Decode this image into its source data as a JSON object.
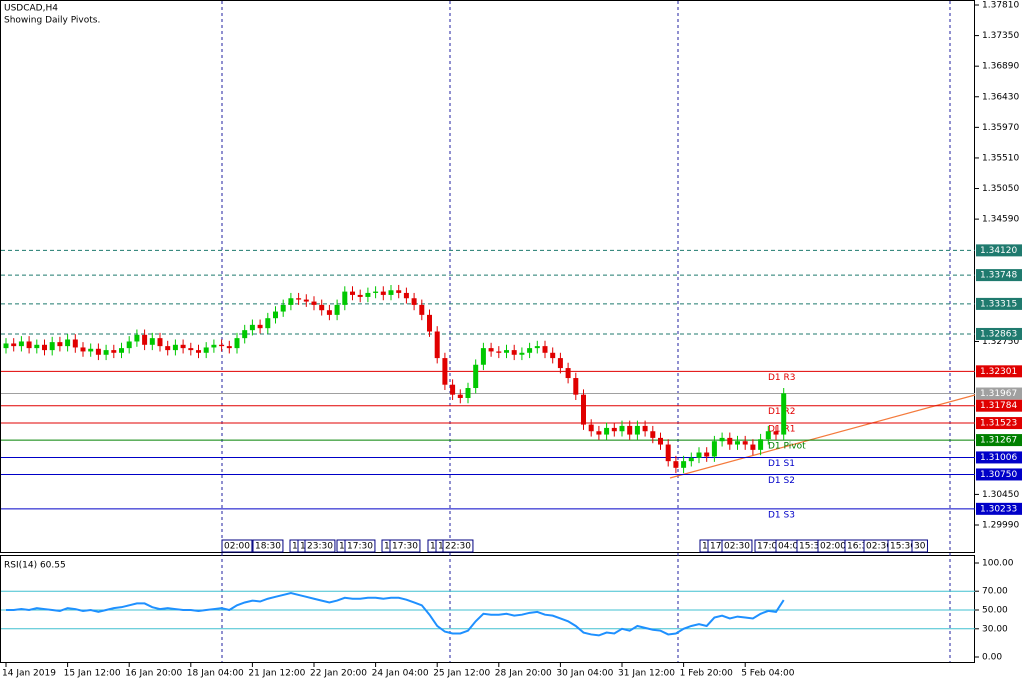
{
  "chart_data": [
    {
      "type": "candlestick",
      "title": "USDCAD,H4",
      "subtitle": "Showing Daily Pivots.",
      "categories": [
        "14 Jan 2019",
        null,
        null,
        null,
        null,
        null,
        null,
        null,
        "15 Jan 12:00",
        null,
        null,
        null,
        null,
        null,
        null,
        null,
        "16 Jan 20:00",
        null,
        null,
        null,
        null,
        null,
        null,
        null,
        "18 Jan 04:00",
        null,
        null,
        null,
        null,
        null,
        null,
        null,
        "21 Jan 12:00",
        null,
        null,
        null,
        null,
        null,
        null,
        null,
        "22 Jan 20:00",
        null,
        null,
        null,
        null,
        null,
        null,
        null,
        "24 Jan 04:00",
        null,
        null,
        null,
        null,
        null,
        null,
        null,
        "25 Jan 12:00",
        null,
        null,
        null,
        null,
        null,
        null,
        null,
        "28 Jan 20:00",
        null,
        null,
        null,
        null,
        null,
        null,
        null,
        "30 Jan 04:00",
        null,
        null,
        null,
        null,
        null,
        null,
        null,
        "31 Jan 12:00",
        null,
        null,
        null,
        null,
        null,
        null,
        null,
        "1 Feb 20:00",
        null,
        null,
        null,
        null,
        null,
        null,
        null,
        "5 Feb 04:00",
        null,
        null,
        null,
        null,
        null
      ],
      "open": [
        1.3265,
        1.3272,
        1.3268,
        1.3275,
        1.3265,
        1.327,
        1.3262,
        1.3274,
        1.3268,
        1.3278,
        1.3266,
        1.326,
        1.3264,
        1.3255,
        1.3262,
        1.3258,
        1.3265,
        1.3275,
        1.3285,
        1.327,
        1.328,
        1.3268,
        1.3262,
        1.327,
        1.3265,
        1.3262,
        1.3258,
        1.3266,
        1.327,
        1.3268,
        1.3265,
        1.328,
        1.3292,
        1.33,
        1.3295,
        1.331,
        1.332,
        1.333,
        1.334,
        1.3338,
        1.3335,
        1.333,
        1.3322,
        1.3315,
        1.333,
        1.335,
        1.3345,
        1.3342,
        1.3348,
        1.335,
        1.3345,
        1.3352,
        1.3348,
        1.334,
        1.333,
        1.3315,
        1.329,
        1.325,
        1.321,
        1.3195,
        1.319,
        1.3205,
        1.324,
        1.3265,
        1.326,
        1.3258,
        1.3262,
        1.3255,
        1.3258,
        1.3265,
        1.3268,
        1.3258,
        1.325,
        1.3235,
        1.322,
        1.3195,
        1.315,
        1.314,
        1.3135,
        1.3145,
        1.314,
        1.3148,
        1.3135,
        1.3148,
        1.314,
        1.313,
        1.312,
        1.3095,
        1.3085,
        1.3095,
        1.31,
        1.3108,
        1.3102,
        1.3125,
        1.313,
        1.312,
        1.3125,
        1.312,
        1.3112,
        1.3128,
        1.314,
        1.3135
      ],
      "high": [
        1.328,
        1.328,
        1.3283,
        1.3283,
        1.3278,
        1.3278,
        1.3282,
        1.3282,
        1.3286,
        1.3286,
        1.3274,
        1.3272,
        1.3272,
        1.327,
        1.327,
        1.3273,
        1.3283,
        1.3293,
        1.3293,
        1.3288,
        1.3288,
        1.3276,
        1.3278,
        1.3278,
        1.3273,
        1.327,
        1.3274,
        1.3278,
        1.3278,
        1.3276,
        1.3288,
        1.33,
        1.3308,
        1.3308,
        1.3318,
        1.3328,
        1.3338,
        1.3348,
        1.3348,
        1.3346,
        1.3343,
        1.3338,
        1.333,
        1.3338,
        1.3358,
        1.3358,
        1.3353,
        1.3356,
        1.3358,
        1.3358,
        1.336,
        1.336,
        1.3356,
        1.3348,
        1.3338,
        1.3323,
        1.3298,
        1.3258,
        1.3218,
        1.3203,
        1.3213,
        1.3248,
        1.3273,
        1.3273,
        1.3268,
        1.327,
        1.327,
        1.3266,
        1.3273,
        1.3276,
        1.3276,
        1.3266,
        1.3258,
        1.3243,
        1.3228,
        1.3203,
        1.3158,
        1.3148,
        1.3153,
        1.3153,
        1.3156,
        1.3156,
        1.3156,
        1.3156,
        1.3148,
        1.3138,
        1.3128,
        1.3103,
        1.3103,
        1.3108,
        1.3116,
        1.3116,
        1.3133,
        1.3138,
        1.3138,
        1.3133,
        1.3133,
        1.3128,
        1.3136,
        1.3148,
        1.3148,
        1.3205
      ],
      "low": [
        1.3257,
        1.326,
        1.326,
        1.3257,
        1.3257,
        1.3254,
        1.3254,
        1.326,
        1.326,
        1.3258,
        1.3252,
        1.3252,
        1.3247,
        1.3247,
        1.325,
        1.325,
        1.3257,
        1.3267,
        1.3262,
        1.3262,
        1.326,
        1.3254,
        1.3254,
        1.3257,
        1.3254,
        1.325,
        1.325,
        1.3258,
        1.326,
        1.3257,
        1.3257,
        1.3272,
        1.3284,
        1.3287,
        1.3287,
        1.3302,
        1.3312,
        1.3322,
        1.333,
        1.3327,
        1.3322,
        1.3314,
        1.3307,
        1.3307,
        1.3322,
        1.3337,
        1.3334,
        1.3334,
        1.334,
        1.3337,
        1.3337,
        1.334,
        1.3332,
        1.3322,
        1.3307,
        1.3282,
        1.3242,
        1.3202,
        1.3187,
        1.3182,
        1.3182,
        1.3197,
        1.3232,
        1.3252,
        1.325,
        1.325,
        1.3247,
        1.3247,
        1.325,
        1.3257,
        1.325,
        1.3242,
        1.3227,
        1.3212,
        1.3187,
        1.3142,
        1.3132,
        1.3127,
        1.3127,
        1.3132,
        1.3132,
        1.3127,
        1.3127,
        1.3132,
        1.3122,
        1.3112,
        1.3087,
        1.3077,
        1.3077,
        1.3087,
        1.3092,
        1.3094,
        1.3094,
        1.3117,
        1.3112,
        1.3112,
        1.3112,
        1.3104,
        1.3104,
        1.312,
        1.3127,
        1.3127
      ],
      "close": [
        1.3272,
        1.3268,
        1.3275,
        1.3265,
        1.327,
        1.3262,
        1.3274,
        1.3268,
        1.3278,
        1.3266,
        1.326,
        1.3264,
        1.3255,
        1.3262,
        1.3258,
        1.3265,
        1.3275,
        1.3285,
        1.327,
        1.328,
        1.3268,
        1.3262,
        1.327,
        1.3265,
        1.3262,
        1.3258,
        1.3266,
        1.327,
        1.3268,
        1.3265,
        1.328,
        1.3292,
        1.33,
        1.3295,
        1.331,
        1.332,
        1.333,
        1.334,
        1.3338,
        1.3335,
        1.333,
        1.3322,
        1.3315,
        1.333,
        1.335,
        1.3345,
        1.3342,
        1.3348,
        1.335,
        1.3345,
        1.3352,
        1.3348,
        1.334,
        1.333,
        1.3315,
        1.329,
        1.325,
        1.321,
        1.3195,
        1.319,
        1.3205,
        1.324,
        1.3265,
        1.326,
        1.3258,
        1.3262,
        1.3255,
        1.3258,
        1.3265,
        1.3268,
        1.3258,
        1.325,
        1.3235,
        1.322,
        1.3195,
        1.315,
        1.314,
        1.3135,
        1.3145,
        1.314,
        1.3148,
        1.3135,
        1.3148,
        1.314,
        1.313,
        1.312,
        1.3095,
        1.3085,
        1.3095,
        1.31,
        1.3108,
        1.3102,
        1.3125,
        1.313,
        1.312,
        1.3125,
        1.312,
        1.3112,
        1.3128,
        1.314,
        1.3135,
        1.3197
      ],
      "up_color": "#00c800",
      "down_color": "#e00000",
      "ylim": [
        1.2999,
        1.3781
      ],
      "yticks": [
        {
          "value": 1.3781,
          "label": "1.37810"
        },
        {
          "value": 1.3735,
          "label": "1.37350"
        },
        {
          "value": 1.3689,
          "label": "1.36890"
        },
        {
          "value": 1.3643,
          "label": "1.36430"
        },
        {
          "value": 1.3597,
          "label": "1.35970"
        },
        {
          "value": 1.3551,
          "label": "1.35510"
        },
        {
          "value": 1.3505,
          "label": "1.35050"
        },
        {
          "value": 1.3459,
          "label": "1.34590"
        },
        {
          "value": 1.3275,
          "label": "1.32750"
        },
        {
          "value": 1.3045,
          "label": "1.30450"
        },
        {
          "value": 1.2999,
          "label": "1.29990"
        }
      ],
      "levels": [
        {
          "value": 1.3412,
          "label": "1.34120",
          "color": "#1f7a6e",
          "style": "dashed"
        },
        {
          "value": 1.33748,
          "label": "1.33748",
          "color": "#1f7a6e",
          "style": "dashed"
        },
        {
          "value": 1.33315,
          "label": "1.33315",
          "color": "#1f7a6e",
          "style": "dashed"
        },
        {
          "value": 1.32863,
          "label": "1.32863",
          "color": "#1f7a6e",
          "style": "dashed"
        },
        {
          "value": 1.32301,
          "label": "1.32301",
          "name": "D1 R3",
          "color": "#e00000",
          "style": "solid"
        },
        {
          "value": 1.31967,
          "label": "1.31967",
          "color": "#a0a0a0",
          "style": "solid"
        },
        {
          "value": 1.31784,
          "label": "1.31784",
          "name": "D1 R2",
          "color": "#e00000",
          "style": "solid"
        },
        {
          "value": 1.31523,
          "label": "1.31523",
          "name": "D1 R1",
          "color": "#e00000",
          "style": "solid"
        },
        {
          "value": 1.31267,
          "label": "1.31267",
          "name": "D1 Pivot",
          "color": "#008000",
          "style": "solid"
        },
        {
          "value": 1.31006,
          "label": "1.31006",
          "name": "D1 S1",
          "color": "#0000c8",
          "style": "solid"
        },
        {
          "value": 1.3075,
          "label": "1.30750",
          "name": "D1 S2",
          "color": "#0000c8",
          "style": "solid"
        },
        {
          "value": 1.30233,
          "label": "1.30233",
          "name": "D1 S3",
          "color": "#0000c8",
          "style": "solid"
        }
      ]
    },
    {
      "type": "line",
      "title": "RSI(14) 60.55",
      "color": "#1e90ff",
      "values": [
        50,
        50,
        51,
        50,
        52,
        51,
        50,
        49,
        52,
        51,
        49,
        50,
        48,
        50,
        52,
        53,
        55,
        57,
        57,
        53,
        51,
        52,
        51,
        50,
        50,
        49,
        50,
        51,
        52,
        50,
        55,
        58,
        60,
        59,
        62,
        64,
        66,
        68,
        66,
        64,
        62,
        60,
        58,
        60,
        63,
        62,
        62,
        63,
        63,
        62,
        63,
        63,
        61,
        58,
        55,
        45,
        33,
        27,
        25,
        25,
        28,
        38,
        46,
        45,
        45,
        46,
        44,
        45,
        47,
        48,
        45,
        44,
        41,
        38,
        33,
        26,
        24,
        23,
        26,
        25,
        30,
        28,
        33,
        31,
        29,
        28,
        24,
        25,
        30,
        33,
        35,
        33,
        42,
        44,
        41,
        43,
        42,
        41,
        46,
        49,
        48,
        60.55
      ],
      "ylim": [
        0,
        100
      ],
      "yticks": [
        {
          "value": 100,
          "label": "100.00"
        },
        {
          "value": 70,
          "label": "70.00"
        },
        {
          "value": 50,
          "label": "50.00"
        },
        {
          "value": 30,
          "label": "30.00"
        },
        {
          "value": 0,
          "label": "0.00"
        }
      ],
      "levels": [
        70,
        50,
        30
      ],
      "level_color": "#40c0d0"
    }
  ],
  "time_markers": [
    "02:00",
    "18:30",
    "1",
    "1",
    "23:30",
    "1",
    "17:30",
    "1",
    "17:30",
    "1",
    "1",
    "22:30",
    "1",
    "17:",
    "02:30",
    "17:01",
    "04:00",
    "15:3",
    "02:00",
    "16:3",
    "02:30",
    "15:30",
    "30"
  ]
}
